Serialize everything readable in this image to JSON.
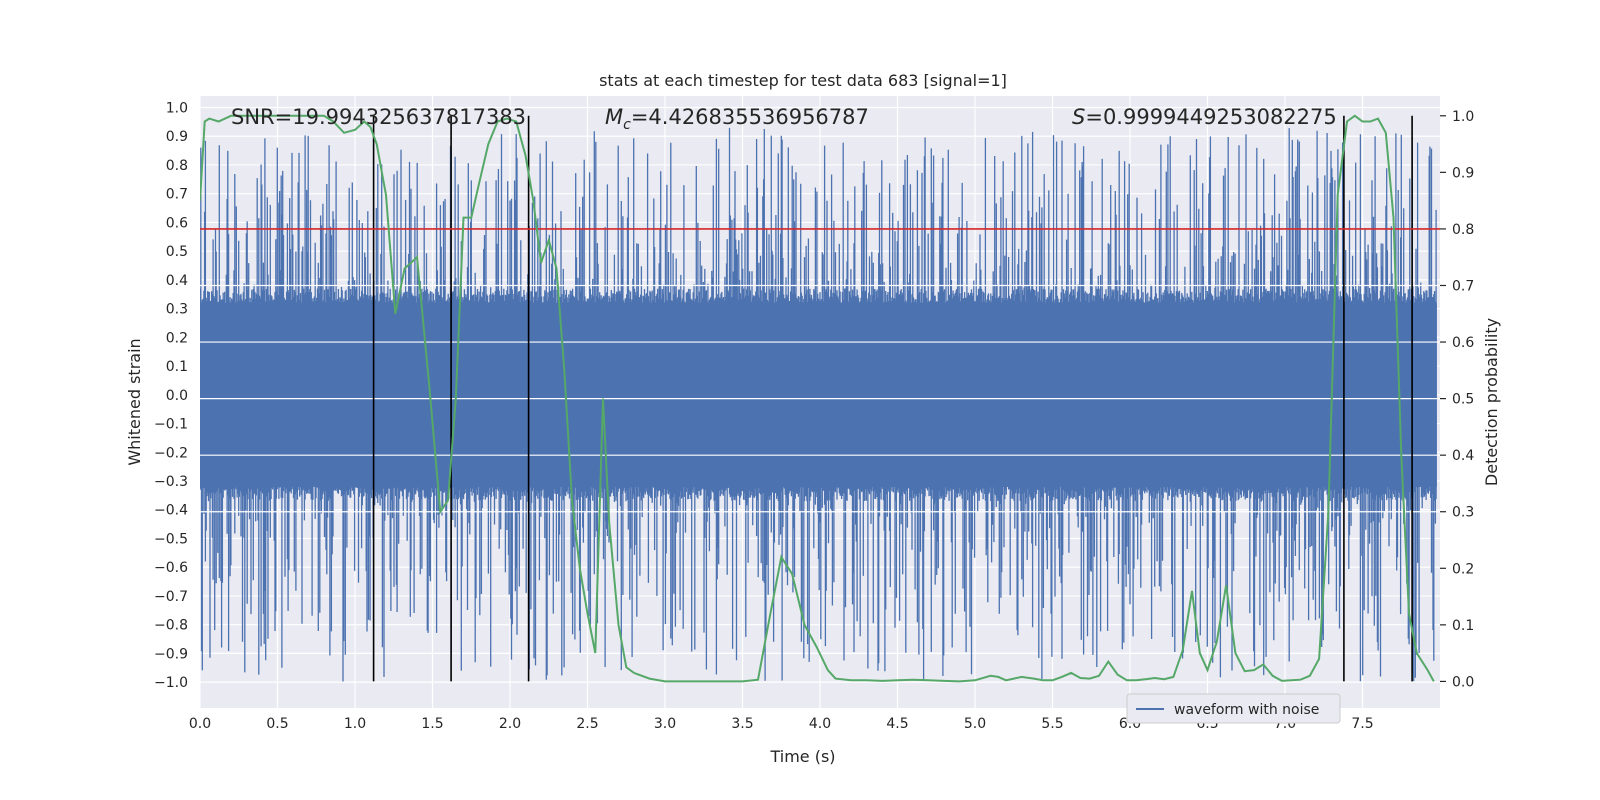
{
  "chart_data": {
    "type": "line",
    "title": "stats at each timestep for test data 683 [signal=1]",
    "xlabel": "Time (s)",
    "ylabel": "Whitened strain",
    "y2label": "Detection probability",
    "xlim": [
      0.0,
      8.0
    ],
    "ylim": [
      -1.09,
      1.04
    ],
    "y2lim": [
      -0.047,
      1.035
    ],
    "x_ticks": [
      "0.0",
      "0.5",
      "1.0",
      "1.5",
      "2.0",
      "2.5",
      "3.0",
      "3.5",
      "4.0",
      "4.5",
      "5.0",
      "5.5",
      "6.0",
      "6.5",
      "7.0",
      "7.5"
    ],
    "y_ticks": [
      "1.0",
      "0.9",
      "0.8",
      "0.7",
      "0.6",
      "0.5",
      "0.4",
      "0.3",
      "0.2",
      "0.1",
      "0.0",
      "-0.1",
      "-0.2",
      "-0.3",
      "-0.4",
      "-0.5",
      "-0.6",
      "-0.7",
      "-0.8",
      "-0.9",
      "-1.0"
    ],
    "y2_ticks": [
      "1.0",
      "0.9",
      "0.8",
      "0.7",
      "0.6",
      "0.5",
      "0.4",
      "0.3",
      "0.2",
      "0.1",
      "0.0"
    ],
    "grid": true,
    "legend": {
      "placement": "lower-right",
      "entries": [
        "waveform with noise"
      ]
    },
    "annotations": {
      "snr": "SNR=19.994325637817383",
      "mc_symbol": "M",
      "mc_sub": "c",
      "mc_value": "=4.426835536956787",
      "s_symbol": "S",
      "s_value": "=0.9999449253082275"
    },
    "threshold": {
      "axis": "right",
      "value": 0.8,
      "color": "#d62728"
    },
    "event_lines_x": [
      1.12,
      1.62,
      2.12,
      7.38,
      7.82
    ],
    "series": [
      {
        "name": "waveform with noise",
        "axis": "left",
        "color": "#4c72b0",
        "kind": "noise-band",
        "core_amplitude": 0.32,
        "spike_max": 0.93,
        "spike_min": -1.0
      },
      {
        "axis": "right",
        "color": "#55a868",
        "x": [
          0.0,
          0.03,
          0.06,
          0.12,
          0.2,
          0.3,
          0.4,
          0.5,
          0.6,
          0.7,
          0.8,
          0.86,
          0.93,
          1.0,
          1.06,
          1.1,
          1.14,
          1.2,
          1.26,
          1.32,
          1.4,
          1.48,
          1.55,
          1.6,
          1.65,
          1.7,
          1.75,
          1.8,
          1.86,
          1.92,
          1.98,
          2.04,
          2.1,
          2.15,
          2.2,
          2.25,
          2.3,
          2.35,
          2.4,
          2.45,
          2.5,
          2.55,
          2.6,
          2.64,
          2.7,
          2.75,
          2.8,
          2.9,
          3.0,
          3.1,
          3.2,
          3.3,
          3.4,
          3.5,
          3.6,
          3.68,
          3.75,
          3.82,
          3.9,
          3.98,
          4.05,
          4.1,
          4.2,
          4.3,
          4.4,
          4.5,
          4.6,
          4.7,
          4.8,
          4.9,
          5.0,
          5.1,
          5.15,
          5.2,
          5.25,
          5.3,
          5.38,
          5.44,
          5.5,
          5.56,
          5.62,
          5.68,
          5.74,
          5.8,
          5.86,
          5.92,
          5.98,
          6.04,
          6.1,
          6.16,
          6.22,
          6.28,
          6.34,
          6.4,
          6.45,
          6.5,
          6.56,
          6.62,
          6.68,
          6.74,
          6.8,
          6.86,
          6.92,
          6.98,
          7.04,
          7.1,
          7.16,
          7.22,
          7.28,
          7.34,
          7.4,
          7.45,
          7.5,
          7.55,
          7.6,
          7.65,
          7.7,
          7.75,
          7.8,
          7.85,
          7.92,
          7.96
        ],
        "y": [
          0.85,
          0.99,
          0.995,
          0.99,
          1.0,
          1.0,
          1.0,
          1.0,
          1.0,
          1.0,
          1.0,
          0.99,
          0.97,
          0.975,
          0.99,
          0.98,
          0.95,
          0.86,
          0.65,
          0.73,
          0.75,
          0.52,
          0.3,
          0.32,
          0.5,
          0.82,
          0.82,
          0.88,
          0.95,
          0.99,
          0.995,
          0.99,
          0.93,
          0.85,
          0.74,
          0.78,
          0.73,
          0.55,
          0.32,
          0.2,
          0.12,
          0.05,
          0.5,
          0.28,
          0.1,
          0.025,
          0.015,
          0.005,
          0.0,
          0.0,
          0.0,
          0.0,
          0.0,
          0.0,
          0.003,
          0.12,
          0.22,
          0.19,
          0.1,
          0.06,
          0.02,
          0.005,
          0.002,
          0.002,
          0.001,
          0.002,
          0.003,
          0.002,
          0.001,
          0.0,
          0.002,
          0.01,
          0.008,
          0.002,
          0.005,
          0.008,
          0.005,
          0.002,
          0.002,
          0.008,
          0.015,
          0.006,
          0.005,
          0.01,
          0.035,
          0.012,
          0.002,
          0.002,
          0.004,
          0.006,
          0.004,
          0.008,
          0.055,
          0.16,
          0.05,
          0.02,
          0.07,
          0.17,
          0.05,
          0.018,
          0.02,
          0.03,
          0.01,
          0.001,
          0.002,
          0.003,
          0.01,
          0.04,
          0.3,
          0.86,
          0.99,
          1.0,
          0.99,
          0.99,
          0.995,
          0.97,
          0.82,
          0.4,
          0.12,
          0.05,
          0.02,
          0.0
        ]
      }
    ]
  }
}
